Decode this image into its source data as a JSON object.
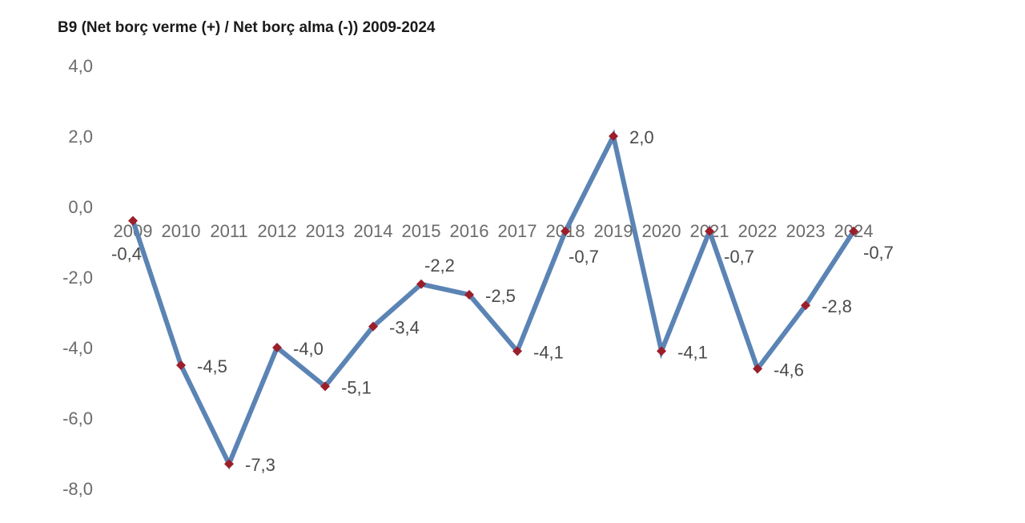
{
  "chart_data": {
    "type": "line",
    "title": "B9 (Net borç verme (+) / Net borç alma (-)) 2009-2024",
    "categories": [
      "2009",
      "2010",
      "2011",
      "2012",
      "2013",
      "2014",
      "2015",
      "2016",
      "2017",
      "2018",
      "2019",
      "2020",
      "2021",
      "2022",
      "2023",
      "2024"
    ],
    "series": [
      {
        "values": [
          -0.4,
          -4.5,
          -7.3,
          -4.0,
          -5.1,
          -3.4,
          -2.2,
          -2.5,
          -4.1,
          -0.7,
          2.0,
          -4.1,
          -0.7,
          -4.6,
          -2.8,
          -0.7
        ]
      }
    ],
    "data_labels": [
      "-0,4",
      "-4,5",
      "-7,3",
      "-4,0",
      "-5,1",
      "-3,4",
      "-2,2",
      "-2,5",
      "-4,1",
      "-0,7",
      "2,0",
      "-4,1",
      "-0,7",
      "-4,6",
      "-2,8",
      "-0,7"
    ],
    "y_ticks": [
      "4,0",
      "2,0",
      "0,0",
      "-2,0",
      "-4,0",
      "-6,0",
      "-8,0"
    ],
    "ylim": [
      -8,
      4
    ],
    "grid": false,
    "line_color": "#5b84b5",
    "marker_color": "#9a1f2a"
  }
}
